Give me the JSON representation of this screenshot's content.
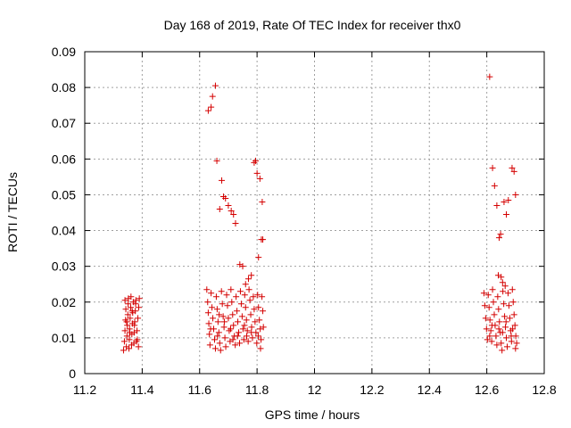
{
  "chart_data": {
    "type": "scatter",
    "title": "Day 168 of 2019, Rate Of TEC Index for receiver thx0",
    "xlabel": "GPS time / hours",
    "ylabel": "ROTI / TECUs",
    "xlim": [
      11.2,
      12.8
    ],
    "ylim": [
      0,
      0.09
    ],
    "xticks": [
      "11.2",
      "11.4",
      "11.6",
      "11.8",
      "12",
      "12.2",
      "12.4",
      "12.6",
      "12.8"
    ],
    "yticks": [
      "0",
      "0.01",
      "0.02",
      "0.03",
      "0.04",
      "0.05",
      "0.06",
      "0.07",
      "0.08",
      "0.09"
    ],
    "grid": true,
    "marker": "+",
    "color": "#d40000",
    "series": [
      {
        "name": "thx0",
        "points": [
          [
            11.335,
            0.0065
          ],
          [
            11.338,
            0.009
          ],
          [
            11.34,
            0.012
          ],
          [
            11.342,
            0.015
          ],
          [
            11.343,
            0.018
          ],
          [
            11.345,
            0.0075
          ],
          [
            11.347,
            0.0105
          ],
          [
            11.348,
            0.0135
          ],
          [
            11.35,
            0.0165
          ],
          [
            11.351,
            0.0195
          ],
          [
            11.352,
            0.021
          ],
          [
            11.354,
            0.007
          ],
          [
            11.355,
            0.0095
          ],
          [
            11.356,
            0.0125
          ],
          [
            11.358,
            0.0155
          ],
          [
            11.36,
            0.0185
          ],
          [
            11.361,
            0.0215
          ],
          [
            11.363,
            0.008
          ],
          [
            11.364,
            0.011
          ],
          [
            11.366,
            0.014
          ],
          [
            11.367,
            0.017
          ],
          [
            11.369,
            0.02
          ],
          [
            11.371,
            0.0085
          ],
          [
            11.372,
            0.0115
          ],
          [
            11.374,
            0.0145
          ],
          [
            11.376,
            0.0175
          ],
          [
            11.378,
            0.0205
          ],
          [
            11.38,
            0.009
          ],
          [
            11.382,
            0.012
          ],
          [
            11.385,
            0.0155
          ],
          [
            11.388,
            0.0185
          ],
          [
            11.39,
            0.021
          ],
          [
            11.34,
            0.0205
          ],
          [
            11.346,
            0.0145
          ],
          [
            11.357,
            0.0115
          ],
          [
            11.365,
            0.0175
          ],
          [
            11.373,
            0.0135
          ],
          [
            11.383,
            0.0095
          ],
          [
            11.387,
            0.0075
          ],
          [
            11.377,
            0.0195
          ],
          [
            11.63,
            0.0735
          ],
          [
            11.64,
            0.0745
          ],
          [
            11.645,
            0.0775
          ],
          [
            11.655,
            0.0805
          ],
          [
            11.66,
            0.0595
          ],
          [
            11.67,
            0.046
          ],
          [
            11.677,
            0.054
          ],
          [
            11.683,
            0.0495
          ],
          [
            11.69,
            0.049
          ],
          [
            11.7,
            0.047
          ],
          [
            11.71,
            0.0455
          ],
          [
            11.718,
            0.0445
          ],
          [
            11.725,
            0.042
          ],
          [
            11.74,
            0.0305
          ],
          [
            11.75,
            0.03
          ],
          [
            11.76,
            0.025
          ],
          [
            11.77,
            0.0265
          ],
          [
            11.78,
            0.0275
          ],
          [
            11.79,
            0.059
          ],
          [
            11.795,
            0.0595
          ],
          [
            11.8,
            0.056
          ],
          [
            11.805,
            0.0325
          ],
          [
            11.81,
            0.0545
          ],
          [
            11.815,
            0.0375
          ],
          [
            11.818,
            0.048
          ],
          [
            11.82,
            0.0375
          ],
          [
            11.625,
            0.0235
          ],
          [
            11.628,
            0.02
          ],
          [
            11.63,
            0.017
          ],
          [
            11.632,
            0.014
          ],
          [
            11.634,
            0.011
          ],
          [
            11.636,
            0.008
          ],
          [
            11.64,
            0.0225
          ],
          [
            11.643,
            0.0185
          ],
          [
            11.646,
            0.0155
          ],
          [
            11.649,
            0.0125
          ],
          [
            11.652,
            0.0095
          ],
          [
            11.655,
            0.007
          ],
          [
            11.658,
            0.0215
          ],
          [
            11.661,
            0.018
          ],
          [
            11.664,
            0.0145
          ],
          [
            11.667,
            0.0115
          ],
          [
            11.67,
            0.0085
          ],
          [
            11.673,
            0.0065
          ],
          [
            11.676,
            0.023
          ],
          [
            11.679,
            0.0195
          ],
          [
            11.682,
            0.016
          ],
          [
            11.685,
            0.013
          ],
          [
            11.688,
            0.01
          ],
          [
            11.691,
            0.0075
          ],
          [
            11.694,
            0.022
          ],
          [
            11.697,
            0.019
          ],
          [
            11.7,
            0.0155
          ],
          [
            11.703,
            0.012
          ],
          [
            11.706,
            0.009
          ],
          [
            11.709,
            0.0235
          ],
          [
            11.712,
            0.02
          ],
          [
            11.715,
            0.0165
          ],
          [
            11.718,
            0.0135
          ],
          [
            11.721,
            0.0105
          ],
          [
            11.724,
            0.008
          ],
          [
            11.727,
            0.0215
          ],
          [
            11.73,
            0.0175
          ],
          [
            11.733,
            0.0145
          ],
          [
            11.736,
            0.0115
          ],
          [
            11.739,
            0.0085
          ],
          [
            11.742,
            0.023
          ],
          [
            11.745,
            0.0195
          ],
          [
            11.748,
            0.016
          ],
          [
            11.751,
            0.0125
          ],
          [
            11.754,
            0.0095
          ],
          [
            11.757,
            0.022
          ],
          [
            11.76,
            0.0185
          ],
          [
            11.763,
            0.015
          ],
          [
            11.766,
            0.012
          ],
          [
            11.769,
            0.009
          ],
          [
            11.772,
            0.0235
          ],
          [
            11.775,
            0.0205
          ],
          [
            11.778,
            0.0165
          ],
          [
            11.781,
            0.013
          ],
          [
            11.784,
            0.01
          ],
          [
            11.787,
            0.0215
          ],
          [
            11.79,
            0.018
          ],
          [
            11.793,
            0.0145
          ],
          [
            11.796,
            0.0115
          ],
          [
            11.799,
            0.0085
          ],
          [
            11.802,
            0.022
          ],
          [
            11.805,
            0.0185
          ],
          [
            11.808,
            0.015
          ],
          [
            11.811,
            0.0125
          ],
          [
            11.814,
            0.0095
          ],
          [
            11.817,
            0.0215
          ],
          [
            11.82,
            0.0175
          ],
          [
            11.822,
            0.013
          ],
          [
            11.812,
            0.007
          ],
          [
            11.638,
            0.0125
          ],
          [
            11.662,
            0.0105
          ],
          [
            11.686,
            0.0145
          ],
          [
            11.708,
            0.0125
          ],
          [
            11.732,
            0.0105
          ],
          [
            11.756,
            0.0135
          ],
          [
            11.78,
            0.0115
          ],
          [
            11.804,
            0.0105
          ],
          [
            11.668,
            0.0165
          ],
          [
            11.716,
            0.0095
          ],
          [
            11.764,
            0.0105
          ],
          [
            12.61,
            0.083
          ],
          [
            12.62,
            0.0575
          ],
          [
            12.627,
            0.0525
          ],
          [
            12.635,
            0.047
          ],
          [
            12.643,
            0.038
          ],
          [
            12.648,
            0.039
          ],
          [
            12.66,
            0.048
          ],
          [
            12.668,
            0.0445
          ],
          [
            12.675,
            0.0485
          ],
          [
            12.688,
            0.0575
          ],
          [
            12.695,
            0.0565
          ],
          [
            12.7,
            0.05
          ],
          [
            12.64,
            0.0275
          ],
          [
            12.65,
            0.027
          ],
          [
            12.655,
            0.0255
          ],
          [
            12.59,
            0.0225
          ],
          [
            12.593,
            0.019
          ],
          [
            12.596,
            0.0155
          ],
          [
            12.599,
            0.0125
          ],
          [
            12.602,
            0.0095
          ],
          [
            12.605,
            0.022
          ],
          [
            12.608,
            0.0185
          ],
          [
            12.611,
            0.015
          ],
          [
            12.614,
            0.012
          ],
          [
            12.617,
            0.009
          ],
          [
            12.62,
            0.0235
          ],
          [
            12.623,
            0.02
          ],
          [
            12.626,
            0.0165
          ],
          [
            12.629,
            0.0135
          ],
          [
            12.632,
            0.0105
          ],
          [
            12.635,
            0.008
          ],
          [
            12.638,
            0.0215
          ],
          [
            12.641,
            0.018
          ],
          [
            12.644,
            0.0145
          ],
          [
            12.647,
            0.0115
          ],
          [
            12.65,
            0.0085
          ],
          [
            12.653,
            0.0065
          ],
          [
            12.656,
            0.023
          ],
          [
            12.659,
            0.0195
          ],
          [
            12.662,
            0.016
          ],
          [
            12.665,
            0.013
          ],
          [
            12.668,
            0.01
          ],
          [
            12.671,
            0.0075
          ],
          [
            12.674,
            0.0225
          ],
          [
            12.677,
            0.019
          ],
          [
            12.68,
            0.0155
          ],
          [
            12.683,
            0.012
          ],
          [
            12.686,
            0.009
          ],
          [
            12.689,
            0.0235
          ],
          [
            12.692,
            0.02
          ],
          [
            12.695,
            0.0165
          ],
          [
            12.698,
            0.0135
          ],
          [
            12.701,
            0.0105
          ],
          [
            12.704,
            0.0085
          ],
          [
            12.7,
            0.007
          ],
          [
            12.664,
            0.0245
          ],
          [
            12.618,
            0.0135
          ],
          [
            12.642,
            0.0125
          ],
          [
            12.667,
            0.0145
          ],
          [
            12.69,
            0.0125
          ],
          [
            12.61,
            0.0105
          ],
          [
            12.655,
            0.0115
          ],
          [
            12.685,
            0.0105
          ]
        ]
      }
    ]
  }
}
